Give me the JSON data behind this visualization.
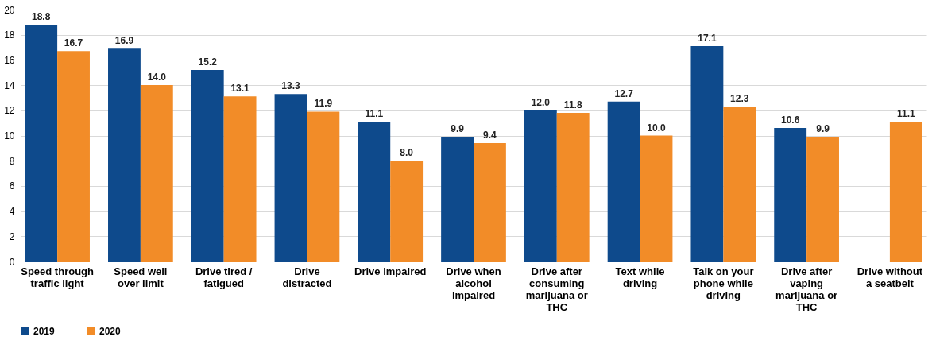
{
  "chart_data": {
    "type": "bar",
    "categories": [
      "Speed through traffic light",
      "Speed well over limit",
      "Drive tired / fatigued",
      "Drive distracted",
      "Drive impaired",
      "Drive when alcohol impaired",
      "Drive after consuming marijuana or THC",
      "Text while driving",
      "Talk on your phone while driving",
      "Drive after vaping marijuana or THC",
      "Drive without a seatbelt"
    ],
    "series": [
      {
        "name": "2019",
        "color": "#0e4a8c",
        "values": [
          18.8,
          16.9,
          15.2,
          13.3,
          11.1,
          9.9,
          12.0,
          12.7,
          17.1,
          10.6,
          null
        ],
        "value_labels": [
          "18.8",
          "16.9",
          "15.2",
          "13.3",
          "11.1",
          "9.9",
          "12.0",
          "12.7",
          "17.1",
          "10.6",
          null
        ]
      },
      {
        "name": "2020",
        "color": "#f28c28",
        "values": [
          16.7,
          14.0,
          13.1,
          11.9,
          8.0,
          9.4,
          11.8,
          10.0,
          12.3,
          9.9,
          11.1
        ],
        "value_labels": [
          "16.7",
          "14.0",
          "13.1",
          "11.9",
          "8.0",
          "9.4",
          "11.8",
          "10.0",
          "12.3",
          "9.9",
          "11.1"
        ]
      }
    ],
    "ylim": [
      0,
      20
    ],
    "yticks": [
      0,
      2,
      4,
      6,
      8,
      10,
      12,
      14,
      16,
      18,
      20
    ],
    "grid": "y",
    "legend": "bottom"
  }
}
